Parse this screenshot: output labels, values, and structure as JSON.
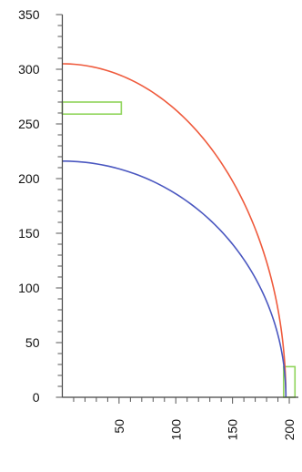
{
  "chart_data": {
    "type": "line",
    "title": "",
    "xlabel": "",
    "ylabel": "",
    "xlim": [
      -2,
      208
    ],
    "ylim": [
      0,
      350
    ],
    "x_ticks": [
      50,
      100,
      150,
      200
    ],
    "y_ticks": [
      0,
      50,
      100,
      150,
      200,
      250,
      300,
      350
    ],
    "minor_tick_step": 10,
    "grid": false,
    "legend": "none",
    "series": [
      {
        "color": "#ef5a3c",
        "shape": "quarter-ellipse",
        "x": [
          0,
          40,
          80,
          110,
          140,
          160,
          180,
          190,
          195
        ],
        "y": [
          305,
          300.5,
          286.7,
          270.0,
          243.3,
          218.1,
          178.9,
          149.9,
          130.2
        ]
      },
      {
        "color": "#4a57c0",
        "shape": "quarter-ellipse",
        "x": [
          0,
          40,
          80,
          110,
          140,
          160,
          180,
          190,
          195
        ],
        "y": [
          216,
          212.7,
          202.1,
          189.2,
          168.3,
          148.5,
          115.6,
          89.0,
          68.1
        ]
      }
    ],
    "rectangles": [
      {
        "color": "#8fd45a",
        "x": [
          0,
          52
        ],
        "y": [
          259,
          270
        ]
      },
      {
        "color": "#8fd45a",
        "x": [
          195,
          205
        ],
        "y": [
          0,
          28
        ]
      }
    ],
    "curve_end": {
      "x": 197,
      "y": 0
    }
  }
}
